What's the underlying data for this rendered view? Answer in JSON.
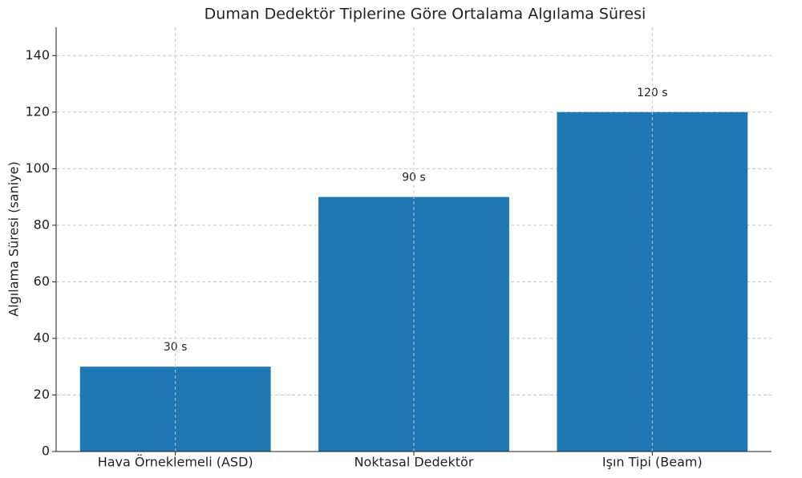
{
  "chart_data": {
    "type": "bar",
    "title": "Duman Dedektör Tiplerine Göre Ortalama Algılama Süresi",
    "y_label": "Algılama Süresi (saniye)",
    "categories": [
      "Hava Örneklemeli (ASD)",
      "Noktasal Dedektör",
      "Işın Tipi (Beam)"
    ],
    "values": [
      30,
      90,
      120
    ],
    "value_labels": [
      "30 s",
      "90 s",
      "120 s"
    ],
    "color": "#1f77b4",
    "ylim": [
      0,
      150
    ],
    "yticks": [
      0,
      20,
      40,
      60,
      80,
      100,
      120,
      140
    ],
    "grid": true
  }
}
